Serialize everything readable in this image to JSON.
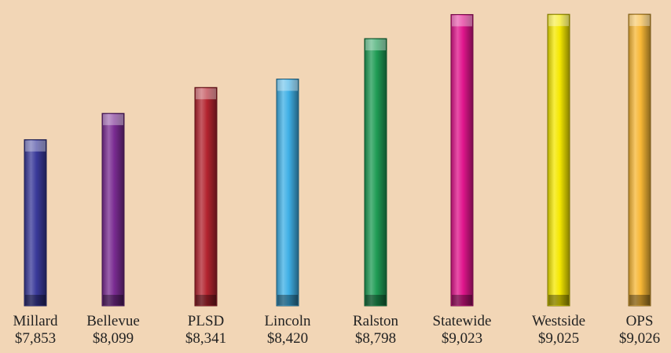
{
  "chart_data": {
    "type": "bar",
    "title": "",
    "xlabel": "",
    "ylabel": "",
    "categories": [
      "Millard",
      "Bellevue",
      "PLSD",
      "Lincoln",
      "Ralston",
      "Statewide",
      "Westside",
      "OPS"
    ],
    "values": [
      7853,
      8099,
      8341,
      8420,
      8798,
      9023,
      9025,
      9026
    ],
    "value_labels": [
      "$7,853",
      "$8,099",
      "$8,341",
      "$8,420",
      "$8,798",
      "$9,023",
      "$9,025",
      "$9,026"
    ],
    "bar_colors": [
      "#3a3a9a",
      "#7a2c92",
      "#b3242f",
      "#3fb0e6",
      "#1f9c55",
      "#e0168c",
      "#f5e800",
      "#f7b735"
    ],
    "ylim": [
      6300,
      9100
    ],
    "grid": false,
    "legend": "none"
  }
}
